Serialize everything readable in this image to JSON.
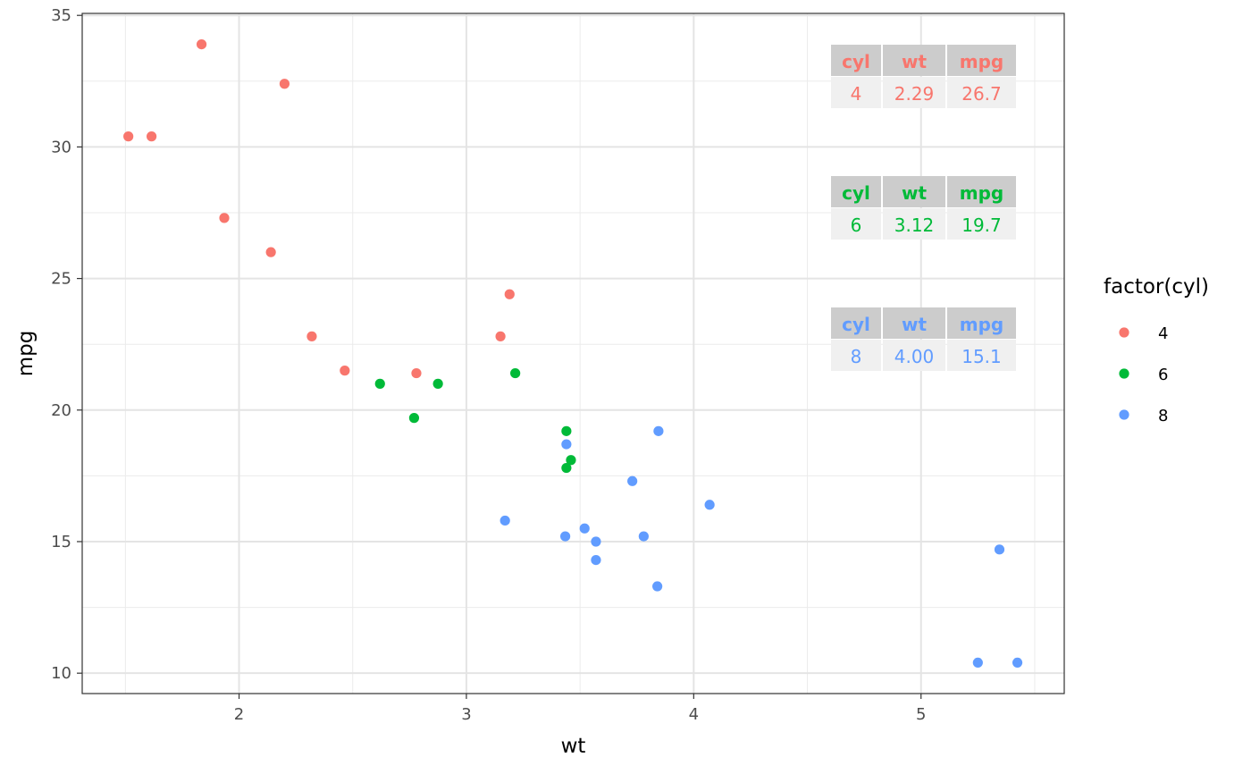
{
  "chart_data": {
    "type": "scatter",
    "xlabel": "wt",
    "ylabel": "mpg",
    "xlim": [
      1.31,
      5.63
    ],
    "ylim": [
      9.225,
      35.075
    ],
    "x_ticks": [
      2,
      3,
      4,
      5
    ],
    "y_ticks": [
      10,
      15,
      20,
      25,
      30,
      35
    ],
    "grid": true,
    "legend": {
      "title": "factor(cyl)",
      "position": "right",
      "entries": [
        {
          "label": "4",
          "color": "#F8766D"
        },
        {
          "label": "6",
          "color": "#00BA38"
        },
        {
          "label": "8",
          "color": "#619CFF"
        }
      ]
    },
    "series": [
      {
        "name": "4",
        "color": "#F8766D",
        "points": [
          [
            1.513,
            30.4
          ],
          [
            1.615,
            30.4
          ],
          [
            1.835,
            33.9
          ],
          [
            1.935,
            27.3
          ],
          [
            2.14,
            26.0
          ],
          [
            2.2,
            32.4
          ],
          [
            2.32,
            22.8
          ],
          [
            2.465,
            21.5
          ],
          [
            2.78,
            21.4
          ],
          [
            3.15,
            22.8
          ],
          [
            3.19,
            24.4
          ]
        ]
      },
      {
        "name": "6",
        "color": "#00BA38",
        "points": [
          [
            2.62,
            21.0
          ],
          [
            2.77,
            19.7
          ],
          [
            2.875,
            21.0
          ],
          [
            3.215,
            21.4
          ],
          [
            3.44,
            19.2
          ],
          [
            3.44,
            17.8
          ],
          [
            3.46,
            18.1
          ]
        ]
      },
      {
        "name": "8",
        "color": "#619CFF",
        "points": [
          [
            3.17,
            15.8
          ],
          [
            3.435,
            15.2
          ],
          [
            3.44,
            18.7
          ],
          [
            3.52,
            15.5
          ],
          [
            3.57,
            15.0
          ],
          [
            3.57,
            14.3
          ],
          [
            3.73,
            17.3
          ],
          [
            3.78,
            15.2
          ],
          [
            3.84,
            13.3
          ],
          [
            3.845,
            19.2
          ],
          [
            4.07,
            16.4
          ],
          [
            5.25,
            10.4
          ],
          [
            5.345,
            14.7
          ],
          [
            5.424,
            10.4
          ]
        ]
      }
    ],
    "tables": [
      {
        "color": "#F8766D",
        "headers": [
          "cyl",
          "wt",
          "mpg"
        ],
        "values": [
          "4",
          "2.29",
          "26.7"
        ]
      },
      {
        "color": "#00BA38",
        "headers": [
          "cyl",
          "wt",
          "mpg"
        ],
        "values": [
          "6",
          "3.12",
          "19.7"
        ]
      },
      {
        "color": "#619CFF",
        "headers": [
          "cyl",
          "wt",
          "mpg"
        ],
        "values": [
          "8",
          "4.00",
          "15.1"
        ]
      }
    ]
  }
}
